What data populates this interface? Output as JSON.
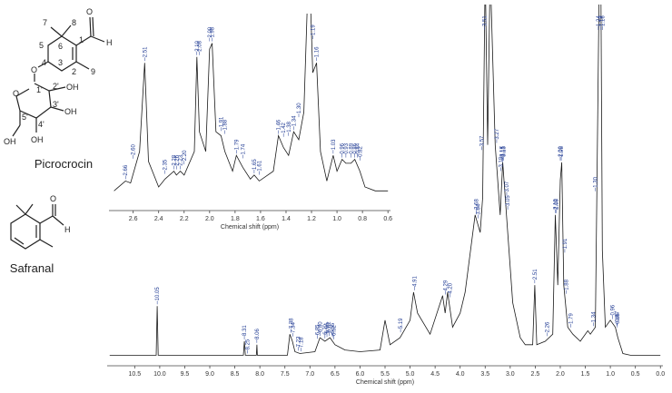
{
  "chart_data": [
    {
      "type": "line",
      "x_label": "Chemical shift (ppm)",
      "color": "#1a1a1a",
      "label_color": "#1f3a93",
      "xlim": [
        11.05,
        -0.05
      ],
      "ylim": [
        -3,
        100
      ],
      "xticks": [
        10.5,
        {
          "value": 10,
          "label": "10.0"
        },
        9.5,
        {
          "value": 9,
          "label": "9.0"
        },
        8.5,
        {
          "value": 8,
          "label": "8.0"
        },
        7.5,
        {
          "value": 7,
          "label": "7.0"
        },
        6.5,
        {
          "value": 6,
          "label": "6.0"
        },
        5.5,
        {
          "value": 5,
          "label": "5.0"
        },
        4.5,
        {
          "value": 4,
          "label": "4.0"
        },
        3.5,
        {
          "value": 3,
          "label": "3.0"
        },
        2.5,
        {
          "value": 2,
          "label": "2.0"
        },
        1.5,
        {
          "value": 1,
          "label": "1.0"
        },
        0.5,
        {
          "value": 0,
          "label": "0.0"
        }
      ],
      "x": [
        11.0,
        10.07,
        10.05,
        10.03,
        8.33,
        8.31,
        8.29,
        8.07,
        8.06,
        8.05,
        7.45,
        7.4,
        7.35,
        7.3,
        7.2,
        6.9,
        6.8,
        6.7,
        6.6,
        6.5,
        6.3,
        6.0,
        5.6,
        5.5,
        5.4,
        5.2,
        5.0,
        4.93,
        4.85,
        4.6,
        4.35,
        4.3,
        4.25,
        4.15,
        4.0,
        3.9,
        3.7,
        3.6,
        3.55,
        3.5,
        3.45,
        3.4,
        3.3,
        3.2,
        3.15,
        3.05,
        2.95,
        2.8,
        2.7,
        2.55,
        2.51,
        2.47,
        2.3,
        2.15,
        2.1,
        2.05,
        2.0,
        1.97,
        1.93,
        1.85,
        1.75,
        1.6,
        1.45,
        1.4,
        1.3,
        1.22,
        1.19,
        1.16,
        1.1,
        1.0,
        0.9,
        0.85,
        0.75,
        0.6,
        0.0
      ],
      "values": [
        0,
        0,
        14,
        0,
        0,
        4,
        0,
        0,
        3,
        0,
        0,
        6,
        4,
        1,
        0.5,
        1,
        5,
        4,
        5,
        3,
        1.5,
        1,
        1.5,
        10,
        3,
        5,
        10,
        18,
        12,
        6,
        17,
        12,
        18,
        8,
        12,
        18,
        40,
        35,
        45,
        110,
        60,
        110,
        60,
        40,
        55,
        35,
        15,
        5,
        3,
        3,
        20,
        3,
        4,
        6,
        40,
        20,
        50,
        55,
        20,
        8,
        6,
        4,
        7,
        6,
        8,
        110,
        110,
        30,
        8,
        10,
        8,
        5,
        0.5,
        0,
        0
      ],
      "annotations": [
        "10.05",
        "8.31",
        "8.25",
        "8.06",
        "7.38",
        "7.34",
        "7.23",
        "7.18",
        "6.85",
        "6.80",
        "6.70",
        "6.66",
        "6.62",
        "6.55",
        "6.52",
        "5.19",
        "4.91",
        "4.29",
        "4.20",
        "3.68",
        "3.64",
        "3.57",
        "3.51",
        "3.27",
        "3.19",
        "3.17",
        "3.15",
        "3.13",
        "3.07",
        "3.05",
        "2.51",
        "2.26",
        "2.10",
        "2.08",
        "2.00",
        "1.98",
        "1.91",
        "1.88",
        "1.79",
        "1.34",
        "1.30",
        "1.24",
        "1.19",
        "1.16",
        "0.96",
        "0.87",
        "0.86"
      ]
    },
    {
      "type": "line",
      "x_label": "Chemical shift (ppm)",
      "color": "#1a1a1a",
      "label_color": "#1f3a93",
      "xlim": [
        2.79,
        0.58
      ],
      "ylim": [
        0,
        100
      ],
      "xticks": [
        2.6,
        2.4,
        2.2,
        {
          "value": 2,
          "label": "2.0"
        },
        1.8,
        1.6,
        1.4,
        1.2,
        {
          "value": 1,
          "label": "1.0"
        },
        0.8,
        0.6
      ],
      "x": [
        2.75,
        2.66,
        2.62,
        2.55,
        2.51,
        2.48,
        2.4,
        2.35,
        2.28,
        2.26,
        2.23,
        2.2,
        2.12,
        2.1,
        2.08,
        2.03,
        2.0,
        1.98,
        1.95,
        1.91,
        1.88,
        1.82,
        1.79,
        1.74,
        1.68,
        1.65,
        1.61,
        1.5,
        1.46,
        1.42,
        1.38,
        1.34,
        1.3,
        1.26,
        1.23,
        1.21,
        1.19,
        1.16,
        1.13,
        1.08,
        1.03,
        1.0,
        0.96,
        0.93,
        0.89,
        0.86,
        0.82,
        0.78,
        0.7,
        0.6
      ],
      "values": [
        10,
        15,
        14,
        30,
        75,
        25,
        12,
        16,
        20,
        18,
        20,
        18,
        30,
        78,
        40,
        30,
        82,
        85,
        40,
        38,
        30,
        20,
        28,
        22,
        16,
        18,
        15,
        20,
        38,
        32,
        28,
        40,
        36,
        50,
        110,
        110,
        70,
        75,
        30,
        15,
        28,
        20,
        26,
        24,
        24,
        26,
        20,
        12,
        10,
        10
      ],
      "annotations": [
        "2.66",
        "2.60",
        "2.51",
        "2.35",
        "2.28",
        "2.26",
        "2.23",
        "2.20",
        "2.10",
        "2.08",
        "2.00",
        "1.98",
        "1.91",
        "1.88",
        "1.79",
        "1.74",
        "1.65",
        "1.61",
        "1.46",
        "1.42",
        "1.38",
        "1.34",
        "1.30",
        "1.19",
        "1.16",
        "1.03",
        "0.96",
        "0.93",
        "0.89",
        "0.86",
        "0.84",
        "0.82"
      ]
    }
  ],
  "structures": {
    "picrocrocin": {
      "name": "Picrocrocin",
      "labels": [
        "7",
        "8",
        "6",
        "5",
        "1",
        "O",
        "H",
        "4",
        "3",
        "2",
        "9",
        "O",
        "O",
        "1'",
        "2'",
        "OH",
        "3'",
        "OH",
        "5'",
        "4'",
        "OH",
        "OH"
      ]
    },
    "safranal": {
      "name": "Safranal",
      "labels": [
        "O",
        "H"
      ]
    }
  }
}
